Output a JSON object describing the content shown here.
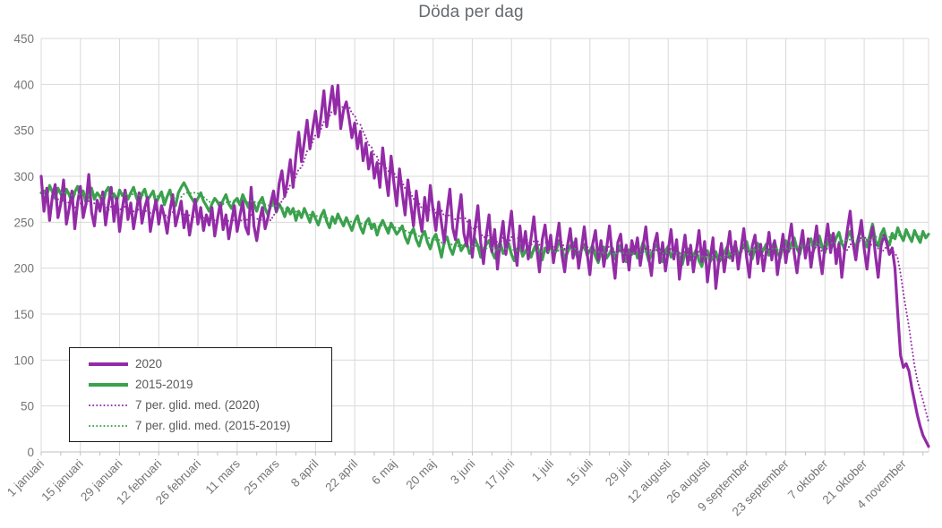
{
  "title": "Döda per dag",
  "theme": {
    "purple": "#932BA7",
    "green": "#3BA14D",
    "grid_color": "#D9D9D9",
    "axis_line_color": "#BFBFBF",
    "tick_label_color": "#757575",
    "title_color": "#666A6E",
    "legend_border_color": "#1A1A1A",
    "legend_text_color": "#595959",
    "background": "#FFFFFF"
  },
  "chart_data": {
    "type": "line",
    "title": "Döda per dag",
    "xlabel": "",
    "ylabel": "",
    "ylim": [
      0,
      450
    ],
    "y_ticks": [
      0,
      50,
      100,
      150,
      200,
      250,
      300,
      350,
      400,
      450
    ],
    "grid": true,
    "legend_position": "inside bottom-left",
    "x_unit": "daily, 1 januari – 13 november",
    "x_tick_labels": [
      "1 januari",
      "15 januari",
      "29 januari",
      "12 februari",
      "26 februari",
      "11 mars",
      "25 mars",
      "8 april",
      "22 april",
      "6 maj",
      "20 maj",
      "3 juni",
      "17 juni",
      "1 juli",
      "15 juli",
      "29 juli",
      "12 augusti",
      "26 augusti",
      "9 september",
      "23 september",
      "7 oktober",
      "21 oktober",
      "4 november"
    ],
    "x_tick_day_indices": [
      0,
      14,
      28,
      42,
      56,
      70,
      84,
      98,
      112,
      126,
      140,
      154,
      168,
      182,
      196,
      210,
      224,
      238,
      252,
      266,
      280,
      294,
      308
    ],
    "minor_tick_every_days": 7,
    "moving_average_window": 7,
    "series": [
      {
        "name": "2020",
        "style": "solid",
        "color": "#932BA7",
        "values": [
          300,
          262,
          287,
          252,
          278,
          291,
          255,
          270,
          296,
          248,
          265,
          284,
          243,
          271,
          289,
          255,
          270,
          302,
          261,
          246,
          274,
          262,
          283,
          247,
          269,
          288,
          251,
          276,
          240,
          265,
          285,
          253,
          271,
          243,
          262,
          282,
          249,
          266,
          277,
          240,
          259,
          274,
          248,
          268,
          256,
          238,
          263,
          280,
          246,
          259,
          273,
          244,
          262,
          236,
          255,
          275,
          248,
          266,
          241,
          258,
          247,
          266,
          235,
          254,
          271,
          242,
          258,
          232,
          251,
          268,
          240,
          257,
          273,
          245,
          237,
          288,
          246,
          230,
          252,
          266,
          243,
          255,
          271,
          284,
          262,
          292,
          306,
          278,
          296,
          318,
          288,
          322,
          348,
          316,
          338,
          361,
          330,
          352,
          371,
          343,
          366,
          393,
          354,
          376,
          398,
          368,
          399,
          352,
          372,
          381,
          363,
          342,
          358,
          330,
          349,
          317,
          336,
          308,
          326,
          298,
          315,
          288,
          331,
          302,
          279,
          322,
          293,
          268,
          308,
          281,
          258,
          296,
          270,
          246,
          284,
          259,
          240,
          277,
          252,
          290,
          263,
          241,
          272,
          249,
          228,
          262,
          286,
          244,
          231,
          258,
          280,
          238,
          224,
          252,
          212,
          244,
          268,
          228,
          205,
          236,
          258,
          218,
          242,
          199,
          230,
          251,
          215,
          238,
          262,
          225,
          203,
          246,
          219,
          240,
          210,
          233,
          256,
          222,
          196,
          231,
          247,
          217,
          236,
          206,
          228,
          249,
          215,
          196,
          224,
          243,
          211,
          232,
          200,
          221,
          245,
          217,
          193,
          226,
          241,
          209,
          230,
          202,
          222,
          246,
          214,
          189,
          228,
          237,
          207,
          225,
          198,
          230,
          216,
          233,
          203,
          224,
          245,
          212,
          192,
          226,
          238,
          206,
          228,
          197,
          219,
          242,
          210,
          231,
          188,
          215,
          236,
          204,
          225,
          196,
          218,
          241,
          207,
          229,
          185,
          211,
          233,
          178,
          206,
          227,
          196,
          219,
          240,
          208,
          229,
          199,
          221,
          243,
          212,
          190,
          224,
          236,
          205,
          226,
          197,
          218,
          239,
          209,
          230,
          193,
          215,
          237,
          206,
          228,
          248,
          216,
          195,
          222,
          241,
          211,
          232,
          201,
          224,
          246,
          214,
          194,
          226,
          248,
          217,
          238,
          205,
          227,
          190,
          219,
          242,
          262,
          228,
          209,
          233,
          252,
          221,
          199,
          228,
          245,
          215,
          190,
          224,
          236,
          228,
          215,
          222,
          200,
          150,
          105,
          92,
          96,
          88,
          70,
          55,
          40,
          28,
          18,
          12,
          6
        ]
      },
      {
        "name": "2015-2019",
        "style": "solid",
        "color": "#3BA14D",
        "values": [
          282,
          284,
          279,
          290,
          283,
          276,
          287,
          281,
          274,
          286,
          280,
          272,
          283,
          289,
          277,
          284,
          271,
          280,
          287,
          275,
          282,
          278,
          270,
          283,
          288,
          276,
          281,
          273,
          285,
          279,
          283,
          275,
          282,
          288,
          277,
          270,
          281,
          286,
          274,
          279,
          284,
          271,
          277,
          283,
          269,
          278,
          285,
          272,
          268,
          282,
          288,
          293,
          287,
          280,
          275,
          270,
          276,
          282,
          273,
          268,
          262,
          270,
          276,
          272,
          266,
          274,
          280,
          270,
          265,
          273,
          276,
          269,
          280,
          273,
          266,
          275,
          270,
          262,
          272,
          277,
          265,
          258,
          268,
          274,
          261,
          270,
          264,
          256,
          266,
          259,
          265,
          252,
          262,
          255,
          265,
          258,
          250,
          261,
          254,
          247,
          257,
          263,
          251,
          244,
          256,
          249,
          259,
          252,
          246,
          255,
          248,
          241,
          251,
          257,
          245,
          238,
          250,
          254,
          243,
          248,
          236,
          246,
          252,
          245,
          238,
          249,
          243,
          237,
          241,
          246,
          234,
          227,
          238,
          243,
          231,
          224,
          235,
          240,
          228,
          221,
          232,
          237,
          225,
          212,
          229,
          234,
          222,
          215,
          226,
          231,
          219,
          224,
          228,
          216,
          221,
          232,
          224,
          212,
          219,
          226,
          230,
          218,
          211,
          223,
          228,
          216,
          221,
          227,
          215,
          208,
          220,
          225,
          213,
          218,
          224,
          212,
          221,
          227,
          215,
          209,
          222,
          217,
          226,
          214,
          219,
          230,
          222,
          210,
          217,
          224,
          228,
          216,
          209,
          221,
          226,
          214,
          219,
          225,
          213,
          206,
          218,
          223,
          211,
          216,
          222,
          210,
          219,
          225,
          213,
          207,
          220,
          215,
          223,
          211,
          217,
          228,
          220,
          208,
          215,
          222,
          226,
          214,
          207,
          219,
          224,
          212,
          217,
          223,
          211,
          204,
          216,
          221,
          209,
          214,
          220,
          208,
          202,
          214,
          219,
          207,
          212,
          218,
          206,
          211,
          217,
          223,
          211,
          220,
          226,
          214,
          219,
          225,
          229,
          217,
          210,
          222,
          227,
          215,
          220,
          226,
          214,
          223,
          229,
          217,
          211,
          224,
          230,
          218,
          227,
          233,
          221,
          215,
          228,
          222,
          226,
          232,
          220,
          229,
          235,
          223,
          217,
          230,
          236,
          224,
          233,
          239,
          227,
          221,
          234,
          240,
          228,
          222,
          235,
          241,
          229,
          223,
          236,
          248,
          230,
          224,
          237,
          243,
          231,
          225,
          238,
          232,
          244,
          236,
          230,
          242,
          235,
          229,
          241,
          234,
          228,
          240,
          233,
          237
        ]
      },
      {
        "name": "7 per. glid. med. (2020)",
        "style": "dotted",
        "color": "#932BA7",
        "derived_from_series": 0,
        "window": 7
      },
      {
        "name": "7 per. glid. med. (2015-2019)",
        "style": "dotted",
        "color": "#3BA14D",
        "derived_from_series": 1,
        "window": 7
      }
    ]
  }
}
